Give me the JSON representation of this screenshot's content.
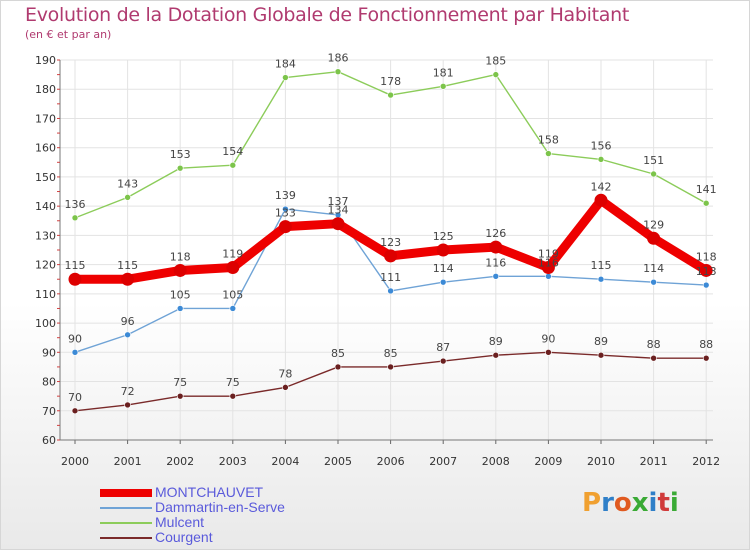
{
  "header": {
    "title": "Evolution de la Dotation Globale de Fonctionnement par Habitant",
    "subtitle": "(en € et par an)"
  },
  "logo": {
    "text": "Proxiti",
    "colors": [
      "#f0a030",
      "#2f7fc8",
      "#e05a20",
      "#3aaa35",
      "#2f7fc8",
      "#d03a3a",
      "#3aaa35"
    ]
  },
  "chart_data": {
    "type": "line",
    "x": [
      "2000",
      "2001",
      "2002",
      "2003",
      "2004",
      "2005",
      "2006",
      "2007",
      "2008",
      "2009",
      "2010",
      "2011",
      "2012"
    ],
    "ylim": [
      60,
      190
    ],
    "yticks": [
      60,
      70,
      80,
      90,
      100,
      110,
      120,
      130,
      140,
      150,
      160,
      170,
      180,
      190
    ],
    "grid": true,
    "legend_position": "bottom-left",
    "series": [
      {
        "name": "Mulcent",
        "color": "#8ccc5a",
        "point_color": "#7cc44a",
        "values": [
          136,
          143,
          153,
          154,
          184,
          186,
          178,
          181,
          185,
          158,
          156,
          151,
          141
        ]
      },
      {
        "name": "Dammartin-en-Serve",
        "color": "#6fa3d6",
        "point_color": "#3c8ad6",
        "values": [
          90,
          96,
          105,
          105,
          139,
          137,
          111,
          114,
          116,
          116,
          115,
          114,
          113
        ]
      },
      {
        "name": "Courgent",
        "color": "#7a2a2a",
        "point_color": "#6a1f1f",
        "values": [
          70,
          72,
          75,
          75,
          78,
          85,
          85,
          87,
          89,
          90,
          89,
          88,
          88
        ]
      },
      {
        "name": "MONTCHAUVET",
        "color": "#ee0000",
        "point_color": "#dd0000",
        "values": [
          115,
          115,
          118,
          119,
          133,
          134,
          123,
          125,
          126,
          119,
          142,
          129,
          118
        ]
      }
    ]
  }
}
